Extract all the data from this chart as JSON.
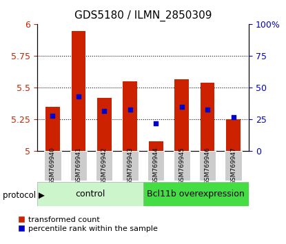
{
  "title": "GDS5180 / ILMN_2850309",
  "samples": [
    "GSM769940",
    "GSM769941",
    "GSM769942",
    "GSM769943",
    "GSM769944",
    "GSM769945",
    "GSM769946",
    "GSM769947"
  ],
  "bar_values": [
    5.35,
    5.95,
    5.42,
    5.55,
    5.08,
    5.57,
    5.54,
    5.25
  ],
  "bar_base": 5.0,
  "percentile_ranks": [
    28,
    43,
    32,
    33,
    22,
    35,
    33,
    27
  ],
  "ylim_left": [
    5.0,
    6.0
  ],
  "ylim_right": [
    0,
    100
  ],
  "yticks_left": [
    5.0,
    5.25,
    5.5,
    5.75,
    6.0
  ],
  "yticks_right": [
    0,
    25,
    50,
    75,
    100
  ],
  "bar_color": "#cc2200",
  "dot_color": "#0000cc",
  "control_label": "control",
  "treatment_label": "Bcl11b overexpression",
  "protocol_label": "protocol",
  "control_bg": "#ccf5cc",
  "treatment_bg": "#44dd44",
  "legend_bar_label": "transformed count",
  "legend_dot_label": "percentile rank within the sample",
  "bar_width": 0.55,
  "tick_label_color_left": "#cc2200",
  "tick_label_color_right": "#0000cc",
  "sample_label_bg": "#cccccc"
}
